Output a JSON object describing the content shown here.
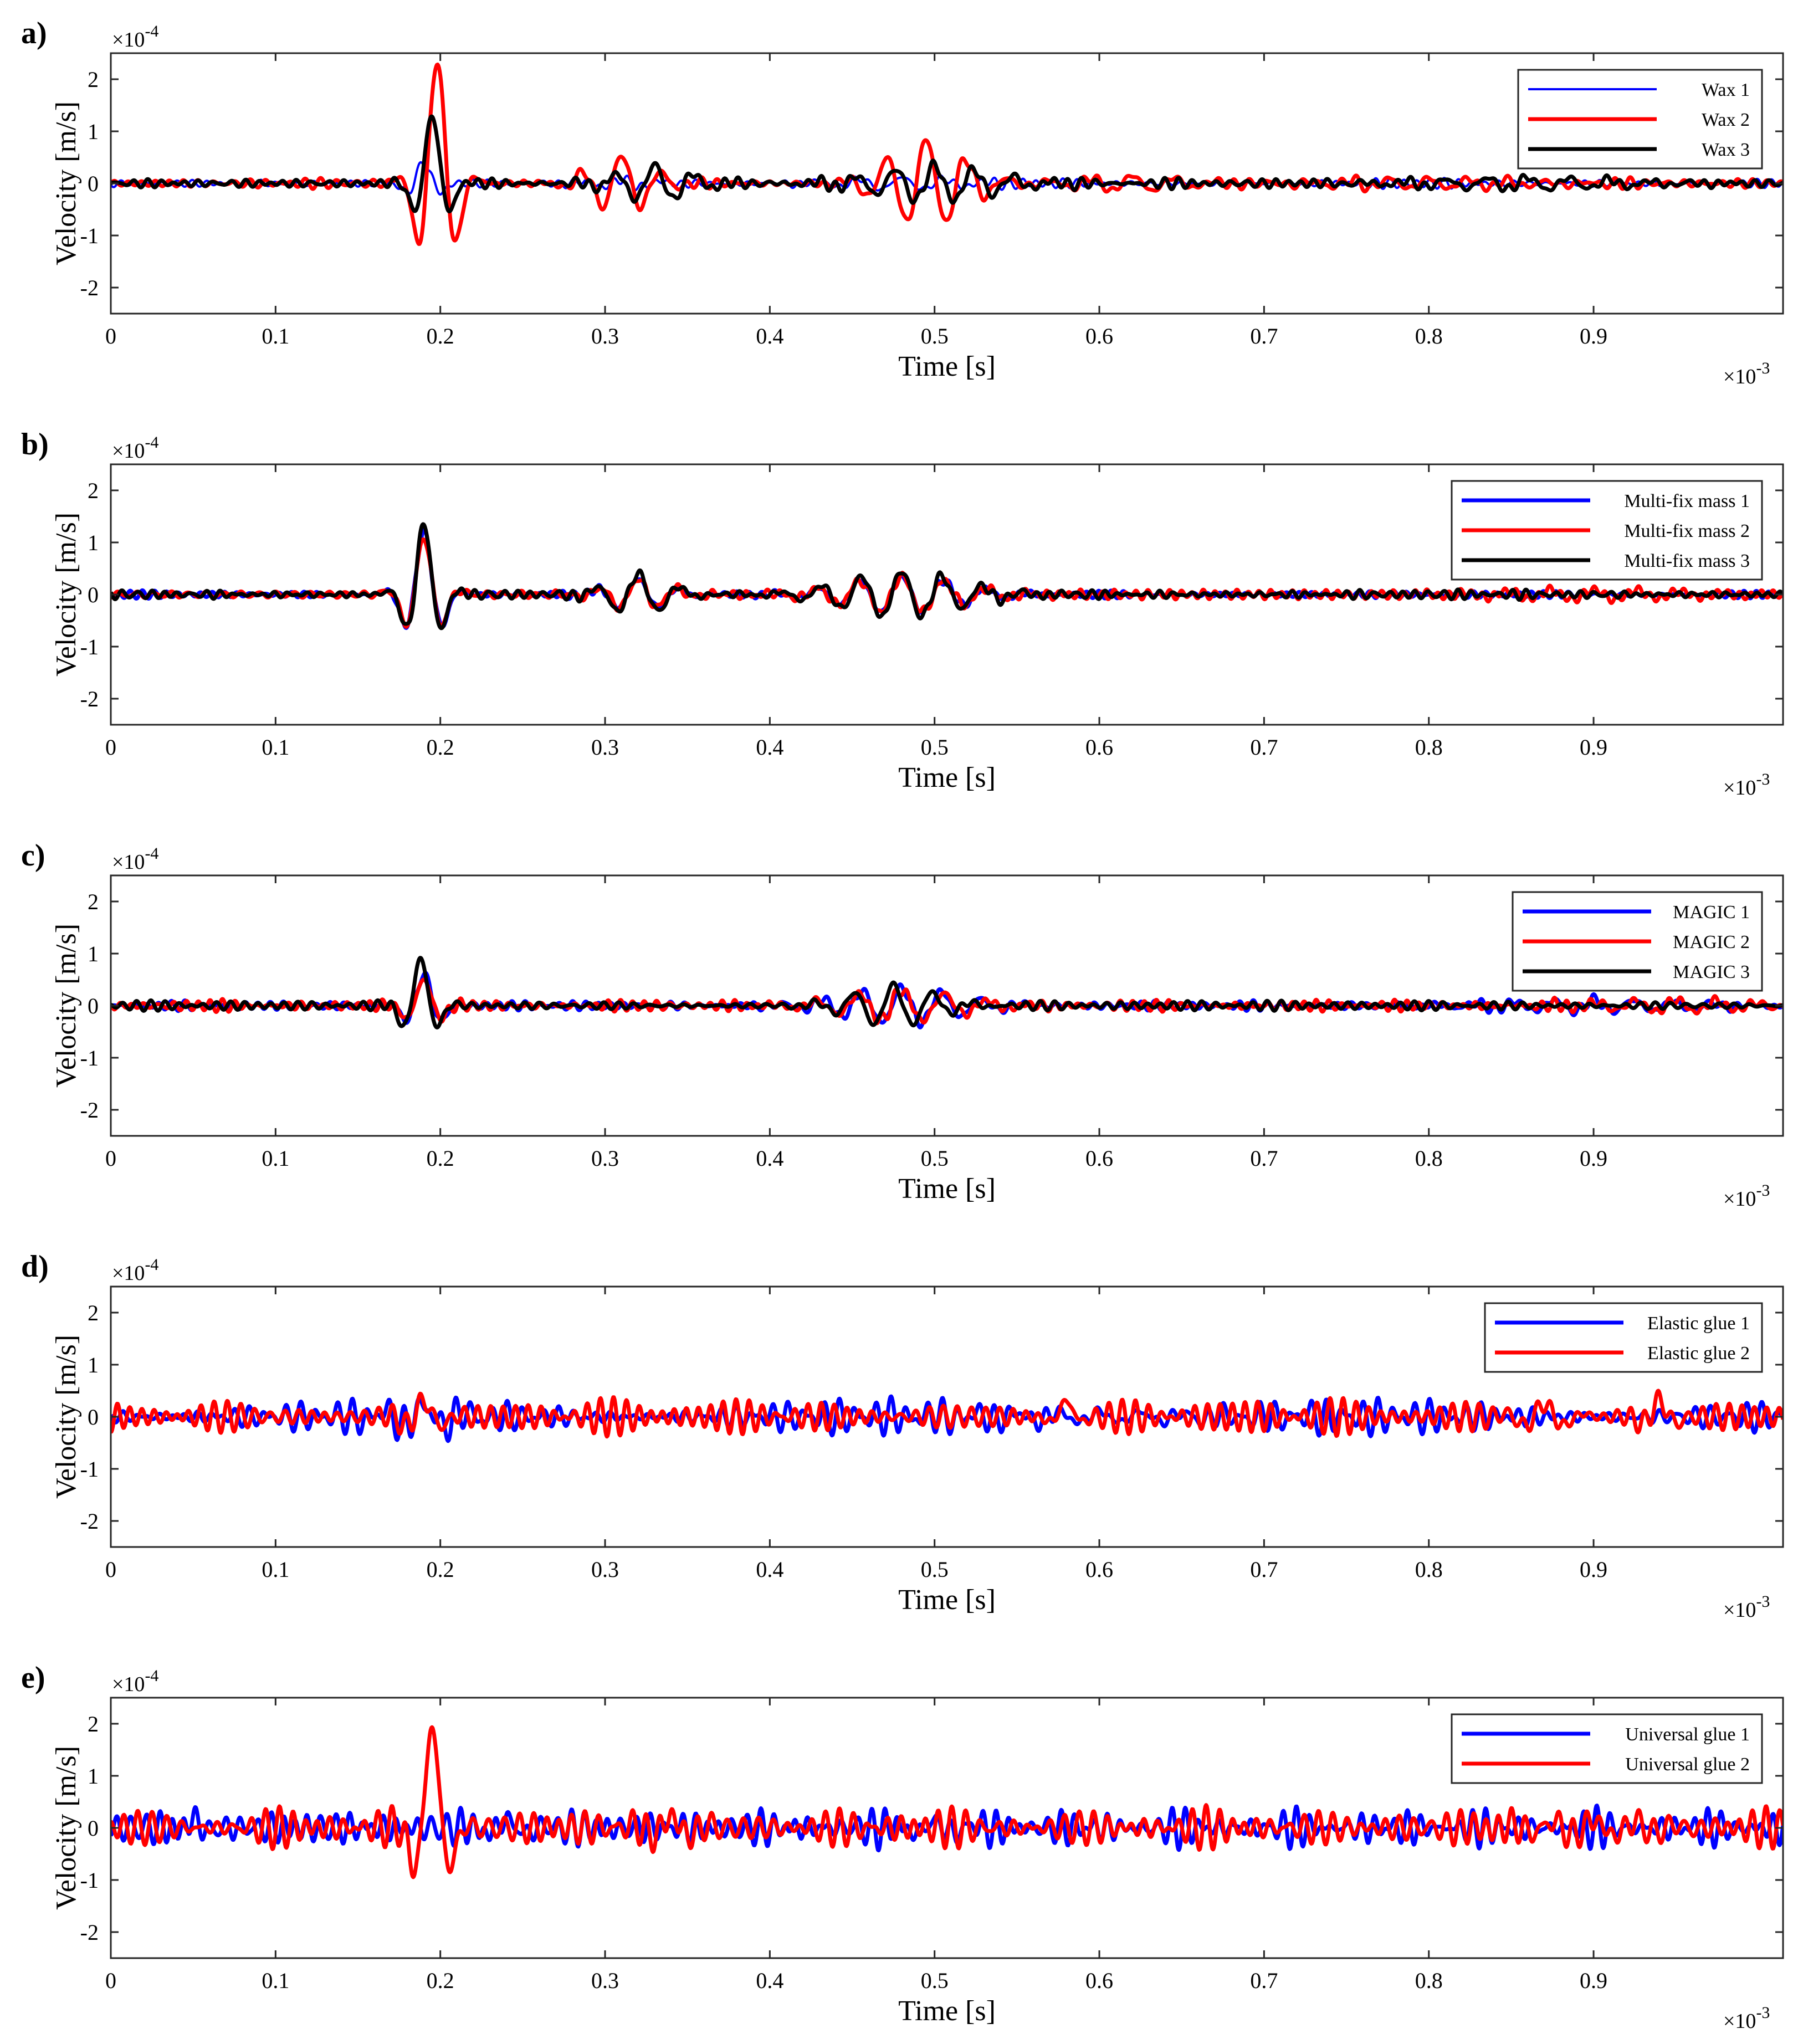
{
  "colors": {
    "blue": "#0000ff",
    "red": "#ff0000",
    "black": "#000000"
  },
  "chart_data": [
    {
      "type": "line",
      "panel_label": "a)",
      "xlabel": "Time [s]",
      "ylabel": "Velocity [m/s]",
      "x_exponent": "×10",
      "x_exponent_power": "-3",
      "y_exponent": "×10",
      "y_exponent_power": "-4",
      "xlim": [
        0,
        1.015
      ],
      "ylim": [
        -2.5,
        2.5
      ],
      "xticks": [
        "0",
        "0.1",
        "0.2",
        "0.3",
        "0.4",
        "0.5",
        "0.6",
        "0.7",
        "0.8",
        "0.9"
      ],
      "yticks": [
        "2",
        "1",
        "0",
        "-1",
        "-2"
      ],
      "series": [
        {
          "name": "Wax 1",
          "color": "#0000ff",
          "width": 4,
          "noise": 0.05,
          "seed": 11,
          "packets": [
            [
              0.19,
              0.012,
              0.4
            ],
            [
              0.31,
              0.03,
              0.08
            ],
            [
              0.48,
              0.05,
              0.12
            ]
          ]
        },
        {
          "name": "Wax 2",
          "color": "#ff0000",
          "width": 7,
          "noise": 0.06,
          "seed": 23,
          "packets": [
            [
              0.198,
              0.014,
              2.35
            ],
            [
              0.31,
              0.025,
              0.55
            ],
            [
              0.495,
              0.032,
              0.85
            ],
            [
              0.62,
              0.05,
              0.15
            ],
            [
              0.8,
              0.08,
              0.1
            ]
          ]
        },
        {
          "name": "Wax 3",
          "color": "#000000",
          "width": 7,
          "noise": 0.06,
          "seed": 37,
          "packets": [
            [
              0.195,
              0.012,
              1.3
            ],
            [
              0.33,
              0.03,
              0.35
            ],
            [
              0.5,
              0.05,
              0.35
            ],
            [
              0.86,
              0.08,
              0.12
            ]
          ]
        }
      ]
    },
    {
      "type": "line",
      "panel_label": "b)",
      "xlabel": "Time [s]",
      "ylabel": "Velocity [m/s]",
      "x_exponent": "×10",
      "x_exponent_power": "-3",
      "y_exponent": "×10",
      "y_exponent_power": "-4",
      "xlim": [
        0,
        1.015
      ],
      "ylim": [
        -2.5,
        2.5
      ],
      "xticks": [
        "0",
        "0.1",
        "0.2",
        "0.3",
        "0.4",
        "0.5",
        "0.6",
        "0.7",
        "0.8",
        "0.9"
      ],
      "yticks": [
        "2",
        "1",
        "0",
        "-1",
        "-2"
      ],
      "series": [
        {
          "name": "Multi-fix mass 1",
          "color": "#0000ff",
          "width": 7,
          "noise": 0.05,
          "seed": 41,
          "packets": [
            [
              0.19,
              0.014,
              1.2
            ],
            [
              0.32,
              0.025,
              0.3
            ],
            [
              0.48,
              0.05,
              0.35
            ]
          ]
        },
        {
          "name": "Multi-fix mass 2",
          "color": "#ff0000",
          "width": 7,
          "noise": 0.06,
          "seed": 53,
          "packets": [
            [
              0.19,
              0.014,
              1.1
            ],
            [
              0.32,
              0.025,
              0.3
            ],
            [
              0.48,
              0.05,
              0.35
            ],
            [
              0.9,
              0.08,
              0.1
            ]
          ]
        },
        {
          "name": "Multi-fix mass 3",
          "color": "#000000",
          "width": 7,
          "noise": 0.05,
          "seed": 67,
          "packets": [
            [
              0.19,
              0.013,
              1.35
            ],
            [
              0.32,
              0.025,
              0.4
            ],
            [
              0.48,
              0.05,
              0.45
            ]
          ]
        }
      ]
    },
    {
      "type": "line",
      "panel_label": "c)",
      "xlabel": "Time [s]",
      "ylabel": "Velocity [m/s]",
      "x_exponent": "×10",
      "x_exponent_power": "-3",
      "y_exponent": "×10",
      "y_exponent_power": "-4",
      "xlim": [
        0,
        1.015
      ],
      "ylim": [
        -2.5,
        2.5
      ],
      "xticks": [
        "0",
        "0.1",
        "0.2",
        "0.3",
        "0.4",
        "0.5",
        "0.6",
        "0.7",
        "0.8",
        "0.9"
      ],
      "yticks": [
        "2",
        "1",
        "0",
        "-1",
        "-2"
      ],
      "series": [
        {
          "name": "MAGIC 1",
          "color": "#0000ff",
          "width": 7,
          "noise": 0.06,
          "seed": 71,
          "packets": [
            [
              0.19,
              0.013,
              0.6
            ],
            [
              0.48,
              0.05,
              0.35
            ],
            [
              0.9,
              0.08,
              0.12
            ]
          ]
        },
        {
          "name": "MAGIC 2",
          "color": "#ff0000",
          "width": 7,
          "noise": 0.07,
          "seed": 83,
          "packets": [
            [
              0.19,
              0.013,
              0.5
            ],
            [
              0.48,
              0.05,
              0.3
            ],
            [
              0.95,
              0.06,
              0.12
            ]
          ]
        },
        {
          "name": "MAGIC 3",
          "color": "#000000",
          "width": 7,
          "noise": 0.05,
          "seed": 97,
          "packets": [
            [
              0.188,
              0.012,
              0.9
            ],
            [
              0.475,
              0.035,
              0.4
            ]
          ]
        }
      ]
    },
    {
      "type": "line",
      "panel_label": "d)",
      "xlabel": "Time [s]",
      "ylabel": "Velocity [m/s]",
      "x_exponent": "×10",
      "x_exponent_power": "-3",
      "y_exponent": "×10",
      "y_exponent_power": "-4",
      "xlim": [
        0,
        1.015
      ],
      "ylim": [
        -2.5,
        2.5
      ],
      "xticks": [
        "0",
        "0.1",
        "0.2",
        "0.3",
        "0.4",
        "0.5",
        "0.6",
        "0.7",
        "0.8",
        "0.9"
      ],
      "yticks": [
        "2",
        "1",
        "0",
        "-1",
        "-2"
      ],
      "series": [
        {
          "name": "Elastic glue 1",
          "color": "#0000ff",
          "width": 7,
          "noise": 0.18,
          "seed": 101,
          "packets": [
            [
              0.19,
              0.03,
              0.2
            ],
            [
              0.6,
              0.1,
              0.1
            ]
          ]
        },
        {
          "name": "Elastic glue 2",
          "color": "#ff0000",
          "width": 7,
          "noise": 0.2,
          "seed": 113,
          "packets": [
            [
              0.19,
              0.015,
              0.3
            ],
            [
              0.58,
              0.01,
              0.3
            ],
            [
              0.87,
              0.02,
              0.25
            ],
            [
              0.94,
              0.012,
              0.3
            ]
          ]
        }
      ]
    },
    {
      "type": "line",
      "panel_label": "e)",
      "xlabel": "Time [s]",
      "ylabel": "Velocity [m/s]",
      "x_exponent": "×10",
      "x_exponent_power": "-3",
      "y_exponent": "×10",
      "y_exponent_power": "-4",
      "xlim": [
        0,
        1.015
      ],
      "ylim": [
        -2.5,
        2.5
      ],
      "xticks": [
        "0",
        "0.1",
        "0.2",
        "0.3",
        "0.4",
        "0.5",
        "0.6",
        "0.7",
        "0.8",
        "0.9"
      ],
      "yticks": [
        "2",
        "1",
        "0",
        "-1",
        "-2"
      ],
      "series": [
        {
          "name": "Universal glue 1",
          "color": "#0000ff",
          "width": 7,
          "noise": 0.2,
          "seed": 127,
          "packets": [
            [
              0.05,
              0.01,
              0.15
            ],
            [
              0.24,
              0.02,
              0.15
            ],
            [
              0.5,
              0.03,
              0.12
            ]
          ]
        },
        {
          "name": "Universal glue 2",
          "color": "#ff0000",
          "width": 7,
          "noise": 0.2,
          "seed": 139,
          "packets": [
            [
              0.195,
              0.012,
              1.9
            ],
            [
              0.34,
              0.02,
              0.2
            ],
            [
              0.9,
              0.05,
              0.15
            ]
          ]
        }
      ]
    }
  ]
}
